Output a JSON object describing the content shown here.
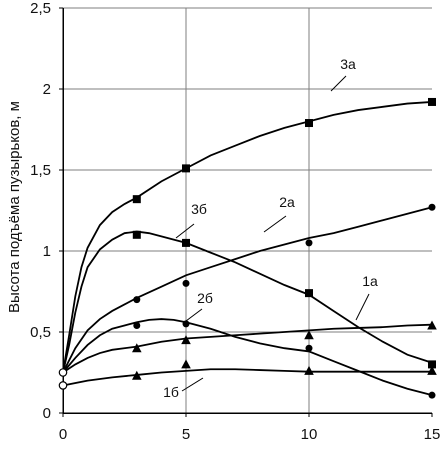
{
  "chart_data": {
    "type": "line",
    "ylabel": "Высота подъёма пузырьков, м",
    "xlabel": "",
    "title": "",
    "xlim": [
      0,
      15
    ],
    "ylim": [
      0,
      2.5
    ],
    "x_ticks": [
      "0",
      "5",
      "10",
      "15"
    ],
    "y_ticks": [
      "0",
      "0,5",
      "1",
      "1,5",
      "2",
      "2,5"
    ],
    "grid": true,
    "series": [
      {
        "name": "3а",
        "marker": "square",
        "x": [
          0,
          3,
          5,
          10,
          15
        ],
        "y": [
          0.25,
          1.32,
          1.51,
          1.79,
          1.92
        ],
        "curve": [
          [
            0,
            0.25
          ],
          [
            0.25,
            0.48
          ],
          [
            0.5,
            0.72
          ],
          [
            0.75,
            0.9
          ],
          [
            1,
            1.02
          ],
          [
            1.5,
            1.16
          ],
          [
            2,
            1.24
          ],
          [
            2.5,
            1.29
          ],
          [
            3,
            1.33
          ],
          [
            4,
            1.43
          ],
          [
            5,
            1.51
          ],
          [
            6,
            1.59
          ],
          [
            7,
            1.65
          ],
          [
            8,
            1.71
          ],
          [
            9,
            1.76
          ],
          [
            10,
            1.8
          ],
          [
            11,
            1.84
          ],
          [
            12,
            1.87
          ],
          [
            13,
            1.89
          ],
          [
            14,
            1.91
          ],
          [
            15,
            1.92
          ]
        ]
      },
      {
        "name": "3б",
        "marker": "square",
        "x": [
          0,
          3,
          5,
          10,
          15
        ],
        "y": [
          0.25,
          1.1,
          1.05,
          0.74,
          0.3
        ],
        "curve": [
          [
            0,
            0.25
          ],
          [
            0.25,
            0.42
          ],
          [
            0.5,
            0.62
          ],
          [
            0.75,
            0.78
          ],
          [
            1,
            0.9
          ],
          [
            1.5,
            1.01
          ],
          [
            2,
            1.07
          ],
          [
            2.5,
            1.11
          ],
          [
            3,
            1.12
          ],
          [
            3.5,
            1.11
          ],
          [
            4,
            1.09
          ],
          [
            5,
            1.05
          ],
          [
            6,
            0.99
          ],
          [
            7,
            0.93
          ],
          [
            8,
            0.86
          ],
          [
            9,
            0.79
          ],
          [
            10,
            0.73
          ],
          [
            11,
            0.63
          ],
          [
            12,
            0.53
          ],
          [
            13,
            0.44
          ],
          [
            14,
            0.36
          ],
          [
            15,
            0.31
          ]
        ]
      },
      {
        "name": "2а",
        "marker": "circle",
        "x": [
          0,
          3,
          5,
          10,
          15
        ],
        "y": [
          0.25,
          0.7,
          0.8,
          1.05,
          1.27
        ],
        "curve": [
          [
            0,
            0.25
          ],
          [
            0.5,
            0.4
          ],
          [
            1,
            0.51
          ],
          [
            1.5,
            0.58
          ],
          [
            2,
            0.63
          ],
          [
            2.5,
            0.67
          ],
          [
            3,
            0.71
          ],
          [
            4,
            0.78
          ],
          [
            5,
            0.85
          ],
          [
            6,
            0.9
          ],
          [
            7,
            0.95
          ],
          [
            8,
            1.0
          ],
          [
            9,
            1.04
          ],
          [
            10,
            1.08
          ],
          [
            11,
            1.11
          ],
          [
            12,
            1.15
          ],
          [
            13,
            1.19
          ],
          [
            14,
            1.23
          ],
          [
            15,
            1.27
          ]
        ]
      },
      {
        "name": "2б",
        "marker": "circle",
        "x": [
          0,
          3,
          5,
          10,
          15
        ],
        "y": [
          0.25,
          0.54,
          0.55,
          0.4,
          0.11
        ],
        "curve": [
          [
            0,
            0.25
          ],
          [
            0.5,
            0.34
          ],
          [
            1,
            0.42
          ],
          [
            1.5,
            0.48
          ],
          [
            2,
            0.52
          ],
          [
            2.5,
            0.54
          ],
          [
            3,
            0.56
          ],
          [
            3.5,
            0.575
          ],
          [
            4,
            0.58
          ],
          [
            4.5,
            0.575
          ],
          [
            5,
            0.56
          ],
          [
            6,
            0.52
          ],
          [
            7,
            0.47
          ],
          [
            8,
            0.43
          ],
          [
            9,
            0.4
          ],
          [
            10,
            0.38
          ],
          [
            11,
            0.32
          ],
          [
            12,
            0.26
          ],
          [
            13,
            0.2
          ],
          [
            14,
            0.15
          ],
          [
            15,
            0.11
          ]
        ]
      },
      {
        "name": "1а",
        "marker": "triangle",
        "x": [
          0,
          3,
          5,
          10,
          15
        ],
        "y": [
          0.25,
          0.4,
          0.45,
          0.48,
          0.54
        ],
        "curve": [
          [
            0,
            0.25
          ],
          [
            0.5,
            0.3
          ],
          [
            1,
            0.34
          ],
          [
            1.5,
            0.37
          ],
          [
            2,
            0.39
          ],
          [
            3,
            0.41
          ],
          [
            4,
            0.44
          ],
          [
            5,
            0.46
          ],
          [
            6,
            0.47
          ],
          [
            7,
            0.48
          ],
          [
            8,
            0.49
          ],
          [
            9,
            0.5
          ],
          [
            10,
            0.51
          ],
          [
            11,
            0.52
          ],
          [
            12,
            0.525
          ],
          [
            13,
            0.53
          ],
          [
            14,
            0.54
          ],
          [
            15,
            0.545
          ]
        ]
      },
      {
        "name": "1б",
        "marker": "triangle",
        "x": [
          0,
          3,
          5,
          10,
          15
        ],
        "y": [
          0.17,
          0.23,
          0.3,
          0.26,
          0.26
        ],
        "curve": [
          [
            0,
            0.17
          ],
          [
            1,
            0.2
          ],
          [
            2,
            0.22
          ],
          [
            3,
            0.235
          ],
          [
            4,
            0.25
          ],
          [
            5,
            0.26
          ],
          [
            6,
            0.27
          ],
          [
            7,
            0.27
          ],
          [
            8,
            0.265
          ],
          [
            9,
            0.26
          ],
          [
            10,
            0.255
          ],
          [
            11,
            0.255
          ],
          [
            12,
            0.255
          ],
          [
            13,
            0.255
          ],
          [
            14,
            0.255
          ],
          [
            15,
            0.255
          ]
        ]
      }
    ],
    "start_points": [
      {
        "x": 0,
        "y": 0.25
      },
      {
        "x": 0,
        "y": 0.17
      }
    ]
  }
}
